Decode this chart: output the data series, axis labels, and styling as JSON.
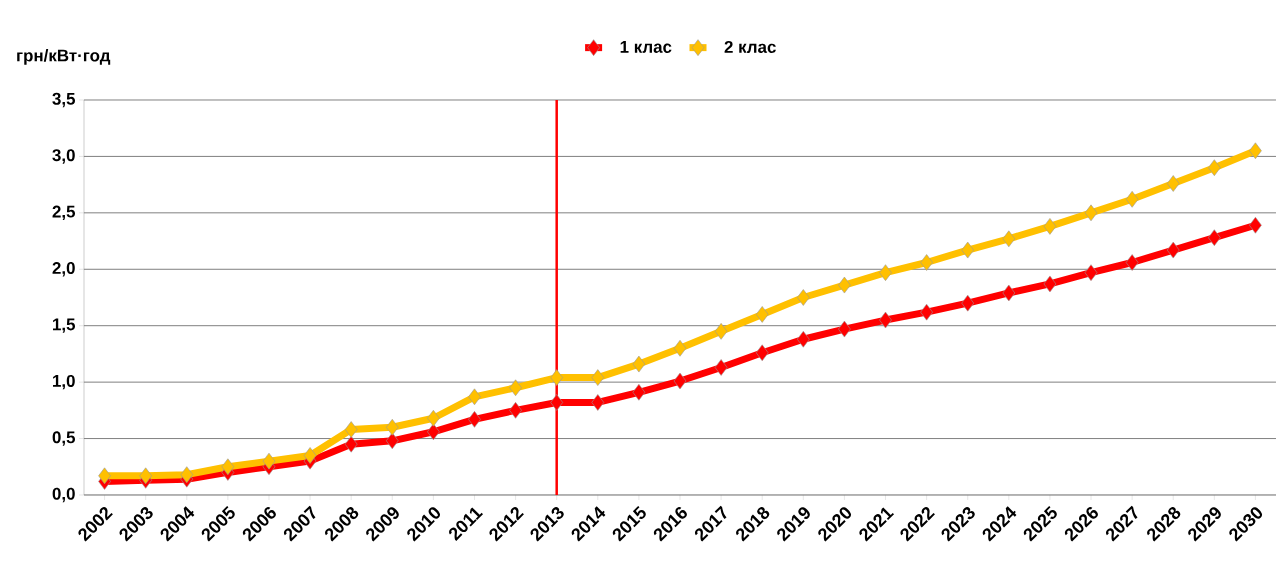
{
  "chart_data": {
    "type": "line",
    "ylabel": "грн/кВт·год",
    "categories": [
      "2002",
      "2003",
      "2004",
      "2005",
      "2006",
      "2007",
      "2008",
      "2009",
      "2010",
      "2011",
      "2012",
      "2013",
      "2014",
      "2015",
      "2016",
      "2017",
      "2018",
      "2019",
      "2020",
      "2021",
      "2022",
      "2023",
      "2024",
      "2025",
      "2026",
      "2027",
      "2028",
      "2029",
      "2030"
    ],
    "series": [
      {
        "name": "1 клас",
        "color": "#ff0000",
        "values": [
          0.12,
          0.13,
          0.14,
          0.2,
          0.25,
          0.3,
          0.45,
          0.48,
          0.56,
          0.67,
          0.75,
          0.82,
          0.82,
          0.91,
          1.01,
          1.13,
          1.26,
          1.38,
          1.47,
          1.55,
          1.62,
          1.7,
          1.79,
          1.87,
          1.97,
          2.06,
          2.17,
          2.28,
          2.39
        ]
      },
      {
        "name": "2 клас",
        "color": "#ffc000",
        "values": [
          0.17,
          0.17,
          0.18,
          0.25,
          0.3,
          0.35,
          0.58,
          0.6,
          0.68,
          0.87,
          0.95,
          1.04,
          1.04,
          1.16,
          1.3,
          1.45,
          1.6,
          1.75,
          1.86,
          1.97,
          2.06,
          2.17,
          2.27,
          2.38,
          2.5,
          2.62,
          2.76,
          2.9,
          3.05
        ]
      }
    ],
    "ylim": [
      0,
      3.5
    ],
    "yticks": [
      {
        "value": 0,
        "label": "0,0"
      },
      {
        "value": 0.5,
        "label": "0,5"
      },
      {
        "value": 1,
        "label": "1,0"
      },
      {
        "value": 1.5,
        "label": "1,5"
      },
      {
        "value": 2,
        "label": "2,0"
      },
      {
        "value": 2.5,
        "label": "2,5"
      },
      {
        "value": 3,
        "label": "3,0"
      },
      {
        "value": 3.5,
        "label": "3,5"
      }
    ],
    "ref_lines": [
      {
        "axis": "x",
        "value": "2013",
        "color": "#ff0000"
      }
    ],
    "grid": "y",
    "legend": "top",
    "marker": "diamond",
    "line_style": "solid"
  }
}
